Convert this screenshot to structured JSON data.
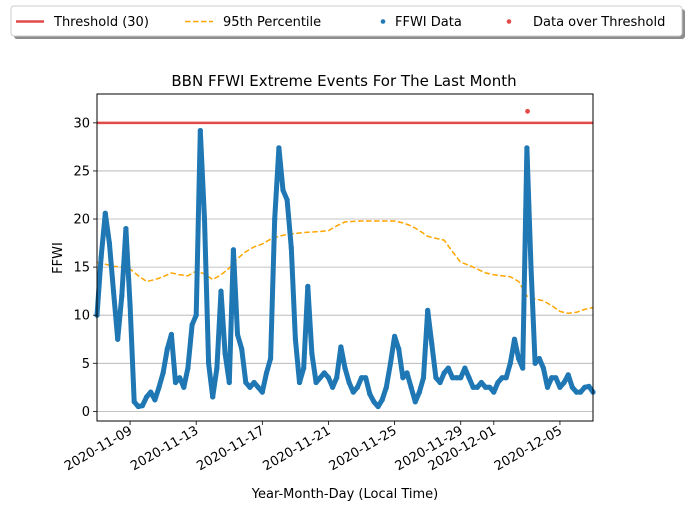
{
  "chart_data": {
    "type": "scatter",
    "title": "BBN FFWI Extreme Events For The Last Month",
    "xlabel": "Year-Month-Day (Local Time)",
    "ylabel": "FFWI",
    "xlim": [
      "2020-11-07",
      "2020-12-07"
    ],
    "ylim": [
      -1.0,
      33.0
    ],
    "yticks": [
      0,
      5,
      10,
      15,
      20,
      25,
      30
    ],
    "xticks": [
      "2020-11-09",
      "2020-11-13",
      "2020-11-17",
      "2020-11-21",
      "2020-11-25",
      "2020-11-29",
      "2020-12-01",
      "2020-12-05"
    ],
    "grid": "horizontal",
    "legend_placement": "top, above plot",
    "threshold": {
      "name": "Threshold (30)",
      "value": 30,
      "color": "#e24a4a"
    },
    "percentile": {
      "name": "95th Percentile",
      "color": "#ffa500",
      "x": [
        "2020-11-07",
        "2020-11-07 12:00",
        "2020-11-08",
        "2020-11-08 12:00",
        "2020-11-09",
        "2020-11-09 12:00",
        "2020-11-10",
        "2020-11-10 12:00",
        "2020-11-11",
        "2020-11-11 12:00",
        "2020-11-12",
        "2020-11-12 12:00",
        "2020-11-13",
        "2020-11-13 12:00",
        "2020-11-14",
        "2020-11-14 12:00",
        "2020-11-15",
        "2020-11-15 12:00",
        "2020-11-16",
        "2020-11-16 12:00",
        "2020-11-17",
        "2020-11-17 12:00",
        "2020-11-18",
        "2020-11-18 12:00",
        "2020-11-19",
        "2020-11-19 12:00",
        "2020-11-20",
        "2020-11-20 12:00",
        "2020-11-21",
        "2020-11-21 12:00",
        "2020-11-22",
        "2020-11-22 12:00",
        "2020-11-23",
        "2020-11-23 12:00",
        "2020-11-24",
        "2020-11-24 12:00",
        "2020-11-25",
        "2020-11-25 12:00",
        "2020-11-26",
        "2020-11-26 12:00",
        "2020-11-27",
        "2020-11-27 12:00",
        "2020-11-28",
        "2020-11-28 12:00",
        "2020-11-29",
        "2020-11-29 12:00",
        "2020-11-30",
        "2020-11-30 12:00",
        "2020-12-01",
        "2020-12-01 12:00",
        "2020-12-02",
        "2020-12-02 12:00",
        "2020-12-03",
        "2020-12-03 12:00",
        "2020-12-04",
        "2020-12-04 12:00",
        "2020-12-05",
        "2020-12-05 12:00",
        "2020-12-06",
        "2020-12-06 12:00",
        "2020-12-07"
      ],
      "y": [
        15.5,
        15.3,
        15.1,
        15.0,
        14.8,
        14.1,
        13.5,
        13.7,
        14.0,
        14.4,
        14.2,
        14.1,
        14.6,
        14.3,
        13.7,
        14.2,
        14.9,
        15.9,
        16.6,
        17.1,
        17.4,
        17.9,
        18.2,
        18.4,
        18.5,
        18.6,
        18.65,
        18.7,
        18.8,
        19.3,
        19.7,
        19.75,
        19.8,
        19.8,
        19.8,
        19.8,
        19.8,
        19.6,
        19.3,
        18.8,
        18.2,
        18.0,
        17.8,
        16.6,
        15.5,
        15.2,
        14.8,
        14.4,
        14.2,
        14.1,
        14.0,
        13.5,
        12.0,
        11.7,
        11.5,
        11.0,
        10.4,
        10.2,
        10.3,
        10.6,
        10.8
      ]
    },
    "series": [
      {
        "name": "FFWI Data",
        "color": "#1f77b4",
        "x": [
          "2020-11-07",
          "2020-11-07 06:00",
          "2020-11-07 12:00",
          "2020-11-07 18:00",
          "2020-11-08",
          "2020-11-08 06:00",
          "2020-11-08 12:00",
          "2020-11-08 18:00",
          "2020-11-09",
          "2020-11-09 06:00",
          "2020-11-09 12:00",
          "2020-11-09 18:00",
          "2020-11-10",
          "2020-11-10 06:00",
          "2020-11-10 12:00",
          "2020-11-10 18:00",
          "2020-11-11",
          "2020-11-11 06:00",
          "2020-11-11 12:00",
          "2020-11-11 18:00",
          "2020-11-12",
          "2020-11-12 06:00",
          "2020-11-12 12:00",
          "2020-11-12 18:00",
          "2020-11-13",
          "2020-11-13 06:00",
          "2020-11-13 12:00",
          "2020-11-13 18:00",
          "2020-11-14",
          "2020-11-14 06:00",
          "2020-11-14 12:00",
          "2020-11-14 18:00",
          "2020-11-15",
          "2020-11-15 06:00",
          "2020-11-15 12:00",
          "2020-11-15 18:00",
          "2020-11-16",
          "2020-11-16 06:00",
          "2020-11-16 12:00",
          "2020-11-16 18:00",
          "2020-11-17",
          "2020-11-17 06:00",
          "2020-11-17 12:00",
          "2020-11-17 18:00",
          "2020-11-18",
          "2020-11-18 06:00",
          "2020-11-18 12:00",
          "2020-11-18 18:00",
          "2020-11-19",
          "2020-11-19 06:00",
          "2020-11-19 12:00",
          "2020-11-19 18:00",
          "2020-11-20",
          "2020-11-20 06:00",
          "2020-11-20 12:00",
          "2020-11-20 18:00",
          "2020-11-21",
          "2020-11-21 06:00",
          "2020-11-21 12:00",
          "2020-11-21 18:00",
          "2020-11-22",
          "2020-11-22 06:00",
          "2020-11-22 12:00",
          "2020-11-22 18:00",
          "2020-11-23",
          "2020-11-23 06:00",
          "2020-11-23 12:00",
          "2020-11-23 18:00",
          "2020-11-24",
          "2020-11-24 06:00",
          "2020-11-24 12:00",
          "2020-11-24 18:00",
          "2020-11-25",
          "2020-11-25 06:00",
          "2020-11-25 12:00",
          "2020-11-25 18:00",
          "2020-11-26",
          "2020-11-26 06:00",
          "2020-11-26 12:00",
          "2020-11-26 18:00",
          "2020-11-27",
          "2020-11-27 06:00",
          "2020-11-27 12:00",
          "2020-11-27 18:00",
          "2020-11-28",
          "2020-11-28 06:00",
          "2020-11-28 12:00",
          "2020-11-28 18:00",
          "2020-11-29",
          "2020-11-29 06:00",
          "2020-11-29 12:00",
          "2020-11-29 18:00",
          "2020-11-30",
          "2020-11-30 06:00",
          "2020-11-30 12:00",
          "2020-11-30 18:00",
          "2020-12-01",
          "2020-12-01 06:00",
          "2020-12-01 12:00",
          "2020-12-01 18:00",
          "2020-12-02",
          "2020-12-02 06:00",
          "2020-12-02 12:00",
          "2020-12-02 18:00",
          "2020-12-03",
          "2020-12-03 06:00",
          "2020-12-03 12:00",
          "2020-12-03 18:00",
          "2020-12-04",
          "2020-12-04 06:00",
          "2020-12-04 12:00",
          "2020-12-04 18:00",
          "2020-12-05",
          "2020-12-05 06:00",
          "2020-12-05 12:00",
          "2020-12-05 18:00",
          "2020-12-06",
          "2020-12-06 06:00",
          "2020-12-06 12:00",
          "2020-12-06 18:00",
          "2020-12-07"
        ],
        "y": [
          10.0,
          16.0,
          20.6,
          17.5,
          12.5,
          7.5,
          12.0,
          19.0,
          11.0,
          1.0,
          0.5,
          0.6,
          1.5,
          2.0,
          1.2,
          2.5,
          4.0,
          6.5,
          8.0,
          3.0,
          3.5,
          2.5,
          4.5,
          9.0,
          10.0,
          29.2,
          20.0,
          5.0,
          1.5,
          4.5,
          12.5,
          6.0,
          3.0,
          16.8,
          8.0,
          6.5,
          3.0,
          2.5,
          3.0,
          2.5,
          2.0,
          4.0,
          5.5,
          20.0,
          27.4,
          23.0,
          22.0,
          17.0,
          7.5,
          3.0,
          4.5,
          13.0,
          6.0,
          3.0,
          3.5,
          4.0,
          3.5,
          2.5,
          3.5,
          6.7,
          4.5,
          3.0,
          2.0,
          2.5,
          3.5,
          3.5,
          1.8,
          1.0,
          0.5,
          1.2,
          2.5,
          5.0,
          7.8,
          6.5,
          3.5,
          4.0,
          2.5,
          1.0,
          2.0,
          3.5,
          10.5,
          7.0,
          3.5,
          3.0,
          4.0,
          4.5,
          3.5,
          3.5,
          3.5,
          4.5,
          3.5,
          2.5,
          2.5,
          3.0,
          2.5,
          2.5,
          2.0,
          3.0,
          3.5,
          3.5,
          5.0,
          7.5,
          5.5,
          4.5,
          27.4,
          15.0,
          5.0,
          5.5,
          4.5,
          2.5,
          3.5,
          3.5,
          2.5,
          3.0,
          3.8,
          2.5,
          2.0,
          2.0,
          2.5,
          2.6,
          2.0
        ]
      },
      {
        "name": "Data over Threshold",
        "color": "#e24a4a",
        "x": [
          "2020-12-03 01:00"
        ],
        "y": [
          31.2
        ]
      }
    ]
  }
}
